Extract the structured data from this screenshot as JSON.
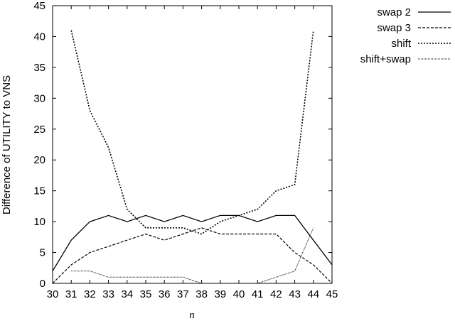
{
  "chart_data": {
    "type": "line",
    "title": "",
    "xlabel": "n",
    "ylabel": "Difference of UTILITY to VNS",
    "xlim": [
      30,
      45
    ],
    "ylim": [
      0,
      45
    ],
    "x_ticks": [
      30,
      31,
      32,
      33,
      34,
      35,
      36,
      37,
      38,
      39,
      40,
      41,
      42,
      43,
      44,
      45
    ],
    "y_ticks": [
      0,
      5,
      10,
      15,
      20,
      25,
      30,
      35,
      40,
      45
    ],
    "grid": false,
    "legend_position": "top-right, outside plot",
    "series": [
      {
        "name": "swap 2",
        "style": "solid",
        "x": [
          30,
          31,
          32,
          33,
          34,
          35,
          36,
          37,
          38,
          39,
          40,
          41,
          42,
          43,
          44,
          45
        ],
        "y": [
          2,
          7,
          10,
          11,
          10,
          11,
          10,
          11,
          10,
          11,
          11,
          10,
          11,
          11,
          7,
          3
        ]
      },
      {
        "name": "swap 3",
        "style": "dashed",
        "x": [
          30,
          31,
          32,
          33,
          34,
          35,
          36,
          37,
          38,
          39,
          40,
          41,
          42,
          43,
          44,
          45
        ],
        "y": [
          0,
          3,
          5,
          6,
          7,
          8,
          7,
          8,
          9,
          8,
          8,
          8,
          8,
          5,
          3,
          0
        ]
      },
      {
        "name": "shift",
        "style": "dotted",
        "x": [
          31,
          32,
          33,
          34,
          35,
          36,
          37,
          38,
          39,
          40,
          41,
          42,
          43,
          44
        ],
        "y": [
          41,
          28,
          22,
          12,
          9,
          9,
          9,
          8,
          10,
          11,
          12,
          15,
          16,
          41
        ]
      },
      {
        "name": "shift+swap",
        "style": "fine-dotted",
        "x": [
          31,
          32,
          33,
          34,
          35,
          36,
          37,
          38,
          39,
          40,
          41,
          42,
          43,
          44
        ],
        "y": [
          2,
          2,
          1,
          1,
          1,
          1,
          1,
          0,
          0,
          0,
          0,
          1,
          2,
          9
        ]
      }
    ]
  }
}
